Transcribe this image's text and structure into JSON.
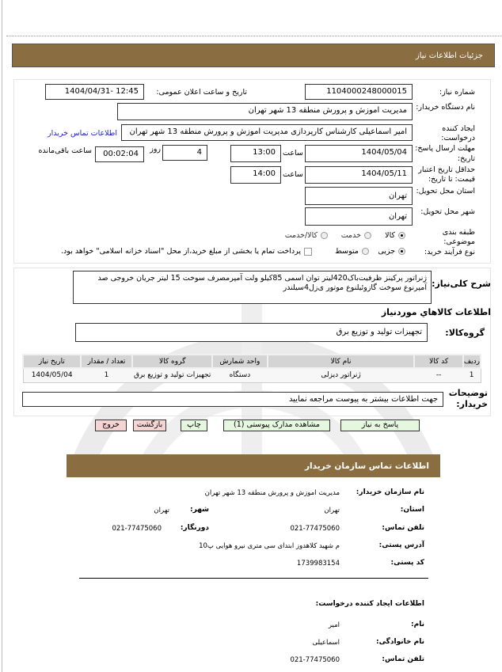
{
  "header": {
    "title": "جزئیات اطلاعات نیاز"
  },
  "form": {
    "need_number_label": "شماره نیاز:",
    "need_number": "1104000248000015",
    "announce_label": "تاریخ و ساعت اعلان عمومی:",
    "announce_value": "1404/04/31- 12:45",
    "buyer_label": "نام دستگاه خریدار:",
    "buyer_value": "مدیریت اموزش و پرورش منطقه 13 شهر تهران",
    "creator_label_1": "ایجاد کننده",
    "creator_label_2": "درخواست:",
    "creator_value": "امیر اسماعیلی کارشناس کارپردازی مدیریت اموزش و پرورش منطقه 13 شهر تهران",
    "contact_link": "اطلاعات تماس خریدار",
    "deadline_label_1": "مهلت ارسال پاسخ: تا",
    "deadline_label_2": "تاریخ:",
    "deadline_date": "1404/05/04",
    "time_label": "ساعت",
    "deadline_time": "13:00",
    "days_label": "روز",
    "days_value": "4",
    "remaining_value": "00:02:04",
    "remaining_label": "ساعت باقی‌مانده",
    "validity_label_1": "حداقل تاریخ اعتبار",
    "validity_label_2": "قیمت: تا تاریخ:",
    "validity_date": "1404/05/11",
    "validity_time": "14:00",
    "province_label": "استان محل تحویل:",
    "province_value": "تهران",
    "city_label": "شهر محل تحویل:",
    "city_value": "تهران",
    "category_label": "طبقه بندی موضوعی:",
    "category_options": [
      "کالا",
      "خدمت",
      "کالا/خدمت"
    ],
    "category_selected": "کالا",
    "process_label": "نوع فرآیند خرید:",
    "process_options": [
      "جزیی",
      "متوسط"
    ],
    "process_selected": "جزیی",
    "payment_note": "پرداخت تمام یا بخشی از مبلغ خرید،از محل \"اسناد خزانه اسلامی\" خواهد بود."
  },
  "need": {
    "desc_label": "شرح کلی‌نیاز:",
    "desc_value": "ژنراتور پرکینز ظرفیت‌باک420لیتر توان اسمی 85کیلو ولت آمپرمصرف سوخت 15 لیتر جریان خروجی صد آمپرنوع سوخت گازوئیلنوع موتور ی‌زل4سیلندر",
    "goods_title": "اطلاعات کالاهاي موردنياز",
    "group_label": "گروه‌کالا:",
    "group_value": "تجهیزات تولید و توزیع برق",
    "table": {
      "headers": [
        "ردیف",
        "کد کالا",
        "نام کالا",
        "واحد شمارش",
        "گروه کالا",
        "تعداد / مقدار",
        "تاریخ نیاز"
      ],
      "rows": [
        [
          "1",
          "--",
          "ژنراتور دیزلی",
          "دستگاه",
          "تجهیزات تولید و توزیع برق",
          "1",
          "1404/05/04"
        ]
      ]
    },
    "notes_label_1": "توضیحات",
    "notes_label_2": "خریدار:",
    "notes_value": "جهت اطلاعات بیشتر به پیوست مراجعه نمایید"
  },
  "buttons": {
    "reply": "پاسخ به نیاز",
    "attachments": "مشاهده مدارک پیوستی (1)",
    "print": "چاپ",
    "back": "بازگشت",
    "exit": "خروج"
  },
  "contact": {
    "title": "اطلاعات تماس سازمان خریدار",
    "org_label": "نام سازمان خریدار:",
    "org_value": "مدیریت اموزش و پرورش منطقه 13 شهر تهران",
    "province_label": "استان:",
    "province_value": "تهران",
    "city_label": "شهر:",
    "city_value": "تهران",
    "phone_label": "تلفن تماس:",
    "phone_value": "021-77475060",
    "fax_label": "دورنگار:",
    "fax_value": "021-77475060",
    "address_label": "آدرس پستی:",
    "address_value": "م شهید کلاهدوز ابتدای سی متری نیرو هوایی پ10",
    "postal_label": "کد پستی:",
    "postal_value": "1739983154",
    "creator_title": "اطلاعات ایجاد کننده درخواست:",
    "name_label": "نام:",
    "name_value": "امیر",
    "family_label": "نام خانوادگی:",
    "family_value": "اسماعیلی",
    "cphone_label": "تلفن تماس:",
    "cphone_value": "021-77475060"
  },
  "colors": {
    "header": "#8b6d42",
    "link": "#1a1acc",
    "green_button": "#e6f7e0",
    "pink_button": "#f5d4d4"
  }
}
